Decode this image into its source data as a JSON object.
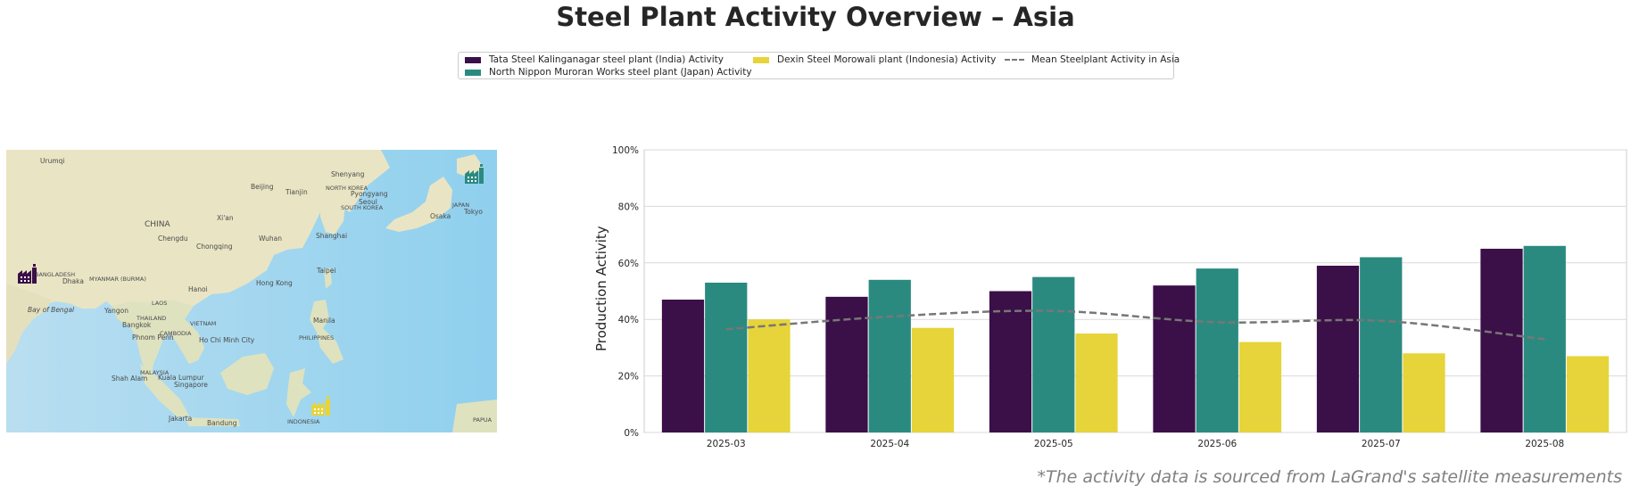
{
  "title": "Steel Plant Activity Overview – Asia",
  "footnote": "*The activity data is sourced from LaGrand's satellite measurements",
  "map": {
    "labels": [
      "Urumqi",
      "Shenyang",
      "Beijing",
      "Tianjin",
      "NORTH KOREA",
      "Pyongyang",
      "Seoul",
      "SOUTH KOREA",
      "JAPAN",
      "Osaka",
      "Tokyo",
      "CHINA",
      "Xi'an",
      "Chengdu",
      "Wuhan",
      "Chongqing",
      "Shanghai",
      "BANGLADESH",
      "Dhaka",
      "MYANMAR (BURMA)",
      "Taipei",
      "Hanoi",
      "Hong Kong",
      "Bay of Bengal",
      "LAOS",
      "Yangon",
      "THAILAND",
      "VIETNAM",
      "Bangkok",
      "CAMBODIA",
      "Phnom Penh",
      "Ho Chi Minh City",
      "Manila",
      "PHILIPPINES",
      "MALAYSIA",
      "Kuala Lumpur",
      "Shah Alam",
      "Singapore",
      "Jakarta",
      "Bandung",
      "INDONESIA",
      "PAPUA"
    ],
    "markers": [
      {
        "name": "Tata Steel Kalinganagar steel plant (India)",
        "color": "#3b0f48",
        "icon": "factory-icon"
      },
      {
        "name": "North Nippon Muroran Works steel plant (Japan)",
        "color": "#2b8a80",
        "icon": "factory-icon"
      },
      {
        "name": "Dexin Steel Morowali plant (Indonesia)",
        "color": "#e6d43a",
        "icon": "factory-icon"
      }
    ]
  },
  "chart_data": {
    "type": "bar",
    "categories": [
      "2025-03",
      "2025-04",
      "2025-05",
      "2025-06",
      "2025-07",
      "2025-08"
    ],
    "series": [
      {
        "name": "Tata Steel Kalinganagar steel plant (India) Activity",
        "color": "#3b0f48",
        "values": [
          47,
          48,
          50,
          52,
          59,
          65
        ]
      },
      {
        "name": "North Nippon Muroran Works steel plant (Japan) Activity",
        "color": "#2b8a80",
        "values": [
          53,
          54,
          55,
          58,
          62,
          66
        ]
      },
      {
        "name": "Dexin Steel Morowali plant (Indonesia) Activity",
        "color": "#e6d43a",
        "values": [
          40,
          37,
          35,
          32,
          28,
          27
        ]
      }
    ],
    "line_series": {
      "name": "Mean Steelplant Activity in Asia",
      "color": "#777777",
      "style": "dashed",
      "values": [
        36.5,
        41,
        43,
        39,
        39.5,
        33
      ]
    },
    "ylabel": "Production Activity",
    "xlabel": "",
    "ylim": [
      0,
      100
    ],
    "yticks": [
      "0%",
      "20%",
      "40%",
      "60%",
      "80%",
      "100%"
    ],
    "grid": true,
    "legend_position": "top-center"
  }
}
